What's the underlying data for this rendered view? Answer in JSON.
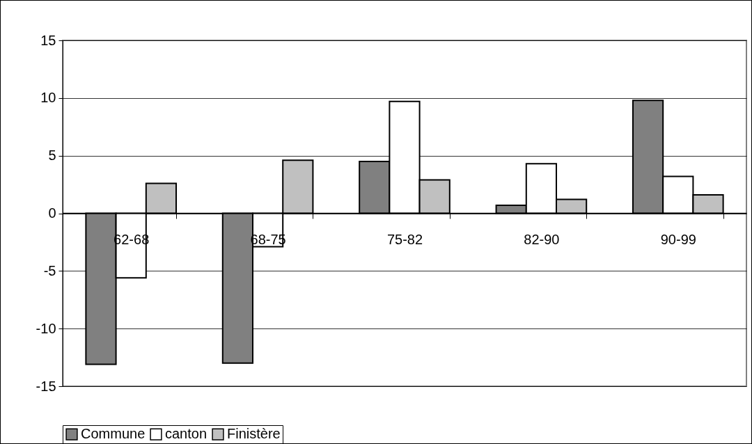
{
  "chart_data": {
    "type": "bar",
    "categories": [
      "62-68",
      "68-75",
      "75-82",
      "82-90",
      "90-99"
    ],
    "series": [
      {
        "name": "Commune",
        "color": "#808080",
        "values": [
          -13.1,
          -13.0,
          4.5,
          0.7,
          9.8
        ]
      },
      {
        "name": "canton",
        "color": "#ffffff",
        "values": [
          -5.6,
          -2.9,
          9.7,
          4.3,
          3.2
        ]
      },
      {
        "name": "Finistère",
        "color": "#c0c0c0",
        "values": [
          2.6,
          4.6,
          2.9,
          1.2,
          1.6
        ]
      }
    ],
    "ylim": [
      -15,
      15
    ],
    "yticks": [
      -15,
      -10,
      -5,
      0,
      5,
      10,
      15
    ],
    "grid": "y",
    "legend": "bottom"
  }
}
